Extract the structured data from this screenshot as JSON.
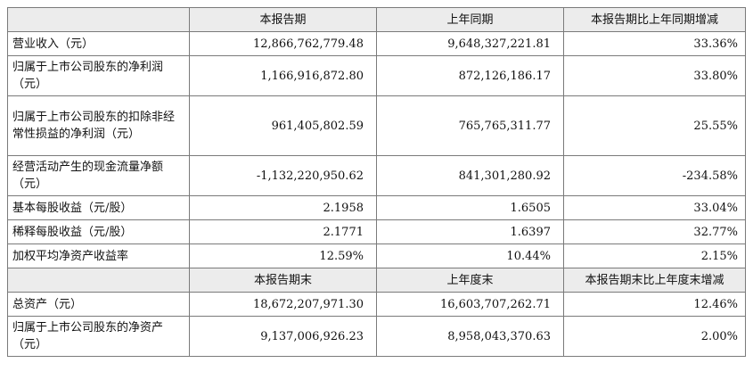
{
  "header1": {
    "col1": "",
    "col2": "本报告期",
    "col3": "上年同期",
    "col4": "本报告期比上年同期增减"
  },
  "rows1": [
    {
      "label": "营业收入（元）",
      "current": "12,866,762,779.48",
      "prior": "9,648,327,221.81",
      "change": "33.36%"
    },
    {
      "label": "归属于上市公司股东的净利润（元）",
      "current": "1,166,916,872.80",
      "prior": "872,126,186.17",
      "change": "33.80%"
    },
    {
      "label": "归属于上市公司股东的扣除非经常性损益的净利润（元）",
      "current": "961,405,802.59",
      "prior": "765,765,311.77",
      "change": "25.55%"
    },
    {
      "label": "经营活动产生的现金流量净额（元）",
      "current": "-1,132,220,950.62",
      "prior": "841,301,280.92",
      "change": "-234.58%"
    },
    {
      "label": "基本每股收益（元/股）",
      "current": "2.1958",
      "prior": "1.6505",
      "change": "33.04%"
    },
    {
      "label": "稀释每股收益（元/股）",
      "current": "2.1771",
      "prior": "1.6397",
      "change": "32.77%"
    },
    {
      "label": "加权平均净资产收益率",
      "current": "12.59%",
      "prior": "10.44%",
      "change": "2.15%"
    }
  ],
  "header2": {
    "col1": "",
    "col2": "本报告期末",
    "col3": "上年度末",
    "col4": "本报告期末比上年度末增减"
  },
  "rows2": [
    {
      "label": "总资产（元）",
      "current": "18,672,207,971.30",
      "prior": "16,603,707,262.71",
      "change": "12.46%"
    },
    {
      "label": "归属于上市公司股东的净资产（元）",
      "current": "9,137,006,926.23",
      "prior": "8,958,043,370.63",
      "change": "2.00%"
    }
  ]
}
